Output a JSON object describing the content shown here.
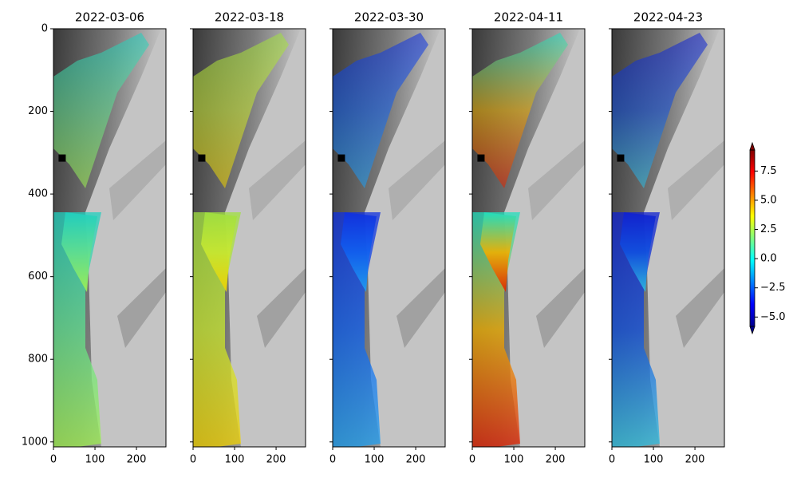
{
  "chart_data": [
    {
      "type": "image",
      "title": "2022-03-06",
      "xlim": [
        0,
        271
      ],
      "ylim": [
        1012,
        0
      ],
      "xticks": [
        0,
        100,
        200
      ],
      "yticks": [
        0,
        200,
        400,
        600,
        800,
        1000
      ],
      "ytick_labels": true,
      "marker": {
        "x": 21,
        "y": 313
      }
    },
    {
      "type": "image",
      "title": "2022-03-18",
      "xlim": [
        0,
        271
      ],
      "ylim": [
        1012,
        0
      ],
      "xticks": [
        0,
        100,
        200
      ],
      "yticks": [
        0,
        200,
        400,
        600,
        800,
        1000
      ],
      "ytick_labels": false,
      "marker": {
        "x": 21,
        "y": 313
      }
    },
    {
      "type": "image",
      "title": "2022-03-30",
      "xlim": [
        0,
        271
      ],
      "ylim": [
        1012,
        0
      ],
      "xticks": [
        0,
        100,
        200
      ],
      "yticks": [
        0,
        200,
        400,
        600,
        800,
        1000
      ],
      "ytick_labels": false,
      "marker": {
        "x": 21,
        "y": 313
      }
    },
    {
      "type": "image",
      "title": "2022-04-11",
      "xlim": [
        0,
        271
      ],
      "ylim": [
        1012,
        0
      ],
      "xticks": [
        0,
        100,
        200
      ],
      "yticks": [
        0,
        200,
        400,
        600,
        800,
        1000
      ],
      "ytick_labels": false,
      "marker": {
        "x": 21,
        "y": 313
      }
    },
    {
      "type": "image",
      "title": "2022-04-23",
      "xlim": [
        0,
        271
      ],
      "ylim": [
        1012,
        0
      ],
      "xticks": [
        0,
        100,
        200
      ],
      "yticks": [
        0,
        200,
        400,
        600,
        800,
        1000
      ],
      "ytick_labels": false,
      "marker": {
        "x": 21,
        "y": 313
      }
    },
    {
      "type": "colorbar",
      "colormap": "jet",
      "extend": "both",
      "clim": [
        -5.8,
        9.3
      ],
      "ticks": [
        {
          "value": -5,
          "label": "−5.0"
        },
        {
          "value": -2.5,
          "label": "−2.5"
        },
        {
          "value": 0,
          "label": "0.0"
        },
        2.5,
        {
          "value": 5,
          "label": "5.0"
        },
        7.5
      ]
    }
  ]
}
